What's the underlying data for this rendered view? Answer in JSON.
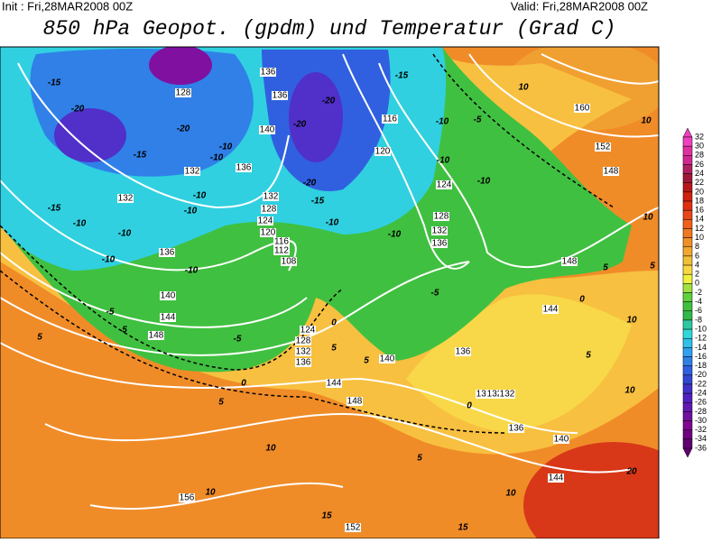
{
  "header": {
    "init": "Init : Fri,28MAR2008 00Z",
    "valid": "Valid: Fri,28MAR2008 00Z",
    "title": "850 hPa Geopot. (gpdm) und Temperatur (Grad C)"
  },
  "colorbar": {
    "labels": [
      "32",
      "30",
      "28",
      "26",
      "24",
      "22",
      "20",
      "18",
      "16",
      "14",
      "12",
      "10",
      "8",
      "6",
      "4",
      "2",
      "0",
      "-2",
      "-4",
      "-6",
      "-8",
      "-10",
      "-12",
      "-14",
      "-16",
      "-18",
      "-20",
      "-22",
      "-24",
      "-26",
      "-28",
      "-30",
      "-32",
      "-34",
      "-36"
    ],
    "colors": [
      "#f040c0",
      "#e030a0",
      "#d02890",
      "#b02060",
      "#a01838",
      "#b81818",
      "#d02010",
      "#e03010",
      "#e84818",
      "#f06018",
      "#f07820",
      "#f09028",
      "#f0a830",
      "#f0c038",
      "#f8d840",
      "#f0f040",
      "#a0e040",
      "#60d040",
      "#40c040",
      "#30b848",
      "#30c8a0",
      "#30d8d8",
      "#30c0e8",
      "#30a0f0",
      "#3080e8",
      "#3060e0",
      "#3048d0",
      "#4030c8",
      "#5020c0",
      "#6018b0",
      "#7010a0",
      "#800890",
      "#700080",
      "#600070"
    ]
  },
  "geopotential_labels": [
    "128",
    "132",
    "136",
    "140",
    "136",
    "136",
    "132",
    "128",
    "124",
    "120",
    "116",
    "112",
    "108",
    "116",
    "120",
    "124",
    "128",
    "132",
    "136",
    "132",
    "136",
    "140",
    "144",
    "148",
    "124",
    "128",
    "132",
    "136",
    "140",
    "144",
    "148",
    "136",
    "132",
    "132",
    "132",
    "136",
    "140",
    "144",
    "152",
    "148",
    "160",
    "144",
    "148",
    "156",
    "152"
  ],
  "temperature_labels": [
    "-15",
    "-20",
    "-20",
    "-15",
    "-10",
    "-10",
    "-15",
    "-10",
    "-10",
    "-10",
    "-10",
    "-10",
    "-10",
    "-5",
    "5",
    "-5",
    "0",
    "5",
    "5",
    "0",
    "5",
    "-10",
    "-15",
    "-20",
    "-20",
    "-20",
    "-15",
    "-10",
    "-10",
    "-10",
    "-5",
    "-10",
    "0",
    "5",
    "10",
    "10",
    "10",
    "10",
    "5",
    "10",
    "-5",
    "5",
    "0",
    "10",
    "10",
    "5",
    "10",
    "15",
    "20",
    "15",
    "5"
  ]
}
